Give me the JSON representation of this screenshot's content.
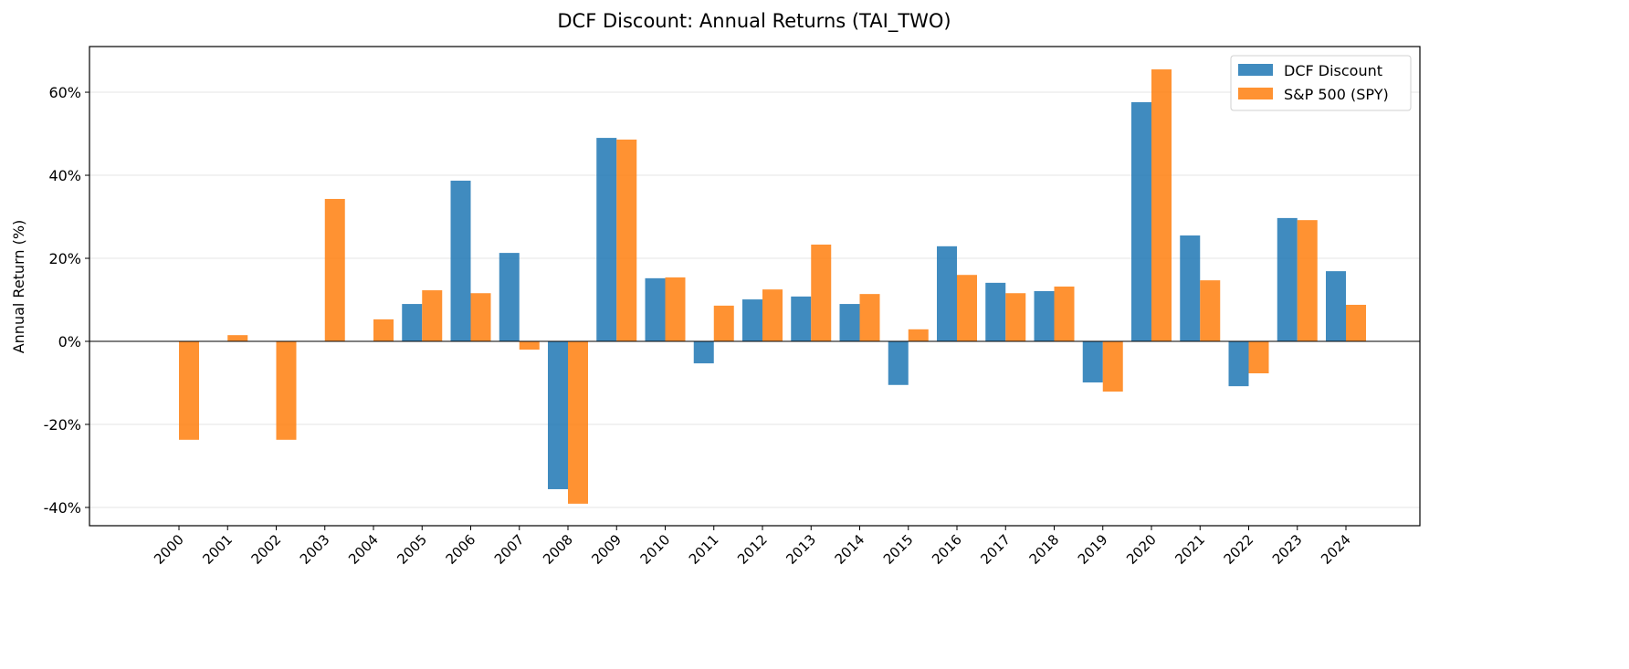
{
  "chart_data": {
    "type": "bar",
    "title": "DCF Discount: Annual Returns (TAI_TWO)",
    "xlabel": "",
    "ylabel": "Annual Return (%)",
    "ylim": [
      -44.4,
      71
    ],
    "yticks": [
      -40,
      -20,
      0,
      20,
      40,
      60
    ],
    "ytick_labels": [
      "-40%",
      "-20%",
      "0%",
      "20%",
      "40%",
      "60%"
    ],
    "grid": "horizontal",
    "legend_position": "top-right",
    "categories": [
      "2000",
      "2001",
      "2002",
      "2003",
      "2004",
      "2005",
      "2006",
      "2007",
      "2008",
      "2009",
      "2010",
      "2011",
      "2012",
      "2013",
      "2014",
      "2015",
      "2016",
      "2017",
      "2018",
      "2019",
      "2020",
      "2021",
      "2022",
      "2023",
      "2024"
    ],
    "series": [
      {
        "name": "DCF Discount",
        "color": "#1f77b4",
        "values": [
          null,
          null,
          null,
          null,
          null,
          9.0,
          38.7,
          21.3,
          -35.6,
          49.0,
          15.2,
          -5.3,
          10.1,
          10.8,
          9.0,
          -10.5,
          22.9,
          14.1,
          12.1,
          -9.9,
          57.6,
          25.5,
          -10.8,
          29.7,
          16.9
        ]
      },
      {
        "name": "S&P 500 (SPY)",
        "color": "#ff7f0e",
        "values": [
          -23.7,
          1.5,
          -23.7,
          34.3,
          5.3,
          12.3,
          11.6,
          -2.0,
          -39.1,
          48.6,
          15.4,
          8.6,
          12.5,
          23.3,
          11.4,
          2.9,
          16.0,
          11.6,
          13.2,
          -12.1,
          65.5,
          14.7,
          -7.7,
          29.2,
          8.8
        ]
      }
    ]
  }
}
